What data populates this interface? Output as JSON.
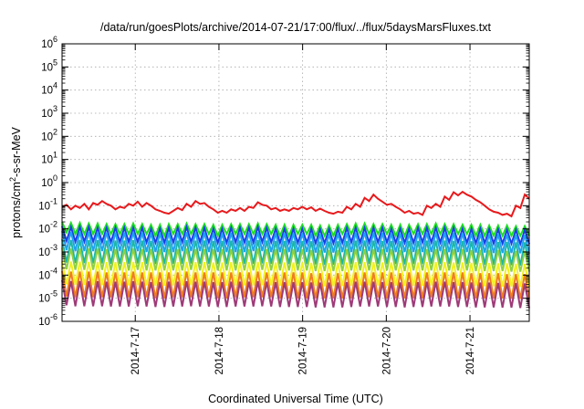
{
  "chart_data": {
    "type": "line",
    "title": "/data/run/goesPlots/archive/2014-07-21/17:00/flux/../flux/5daysMarsFluxes.txt",
    "xlabel": "Coordinated Universal Time (UTC)",
    "ylabel": {
      "pre": "protons/cm",
      "sup": "2",
      "post": "-s-sr-MeV"
    },
    "yscale": "log",
    "ylim": [
      1e-06,
      1000000.0
    ],
    "y_ticks": [
      {
        "base": "10",
        "exp": "-6"
      },
      {
        "base": "10",
        "exp": "-5"
      },
      {
        "base": "10",
        "exp": "-4"
      },
      {
        "base": "10",
        "exp": "-3"
      },
      {
        "base": "10",
        "exp": "-2"
      },
      {
        "base": "10",
        "exp": "-1"
      },
      {
        "base": "10",
        "exp": "0"
      },
      {
        "base": "10",
        "exp": "1"
      },
      {
        "base": "10",
        "exp": "2"
      },
      {
        "base": "10",
        "exp": "3"
      },
      {
        "base": "10",
        "exp": "4"
      },
      {
        "base": "10",
        "exp": "5"
      },
      {
        "base": "10",
        "exp": "6"
      }
    ],
    "xlim": [
      "2014-07-16 03:00",
      "2014-07-21 17:00"
    ],
    "x_ticks": [
      "2014-7-17",
      "2014-7-18",
      "2014-7-19",
      "2014-7-20",
      "2014-7-21"
    ],
    "grid": true,
    "series": [
      {
        "color": "#e8191c",
        "values": [
          0.09,
          0.11,
          0.07,
          0.1,
          0.08,
          0.12,
          0.07,
          0.13,
          0.11,
          0.16,
          0.12,
          0.1,
          0.07,
          0.09,
          0.08,
          0.12,
          0.1,
          0.15,
          0.09,
          0.13,
          0.1,
          0.07,
          0.06,
          0.05,
          0.045,
          0.06,
          0.08,
          0.065,
          0.12,
          0.09,
          0.16,
          0.12,
          0.13,
          0.09,
          0.07,
          0.05,
          0.06,
          0.05,
          0.07,
          0.06,
          0.08,
          0.06,
          0.09,
          0.08,
          0.14,
          0.11,
          0.1,
          0.07,
          0.08,
          0.06,
          0.07,
          0.06,
          0.08,
          0.07,
          0.09,
          0.07,
          0.085,
          0.06,
          0.075,
          0.06,
          0.05,
          0.045,
          0.055,
          0.05,
          0.09,
          0.07,
          0.12,
          0.09,
          0.22,
          0.16,
          0.3,
          0.2,
          0.15,
          0.11,
          0.12,
          0.09,
          0.07,
          0.05,
          0.06,
          0.045,
          0.05,
          0.04,
          0.1,
          0.08,
          0.12,
          0.09,
          0.25,
          0.18,
          0.38,
          0.28,
          0.4,
          0.3,
          0.25,
          0.18,
          0.14,
          0.1,
          0.07,
          0.055,
          0.05,
          0.04,
          0.045,
          0.035,
          0.1,
          0.08,
          0.3,
          0.2
        ]
      },
      {
        "color": "#1ce020",
        "values": [
          0.02,
          0.007,
          0.018,
          0.006,
          0.018,
          0.006,
          0.017,
          0.006,
          0.017,
          0.006,
          0.016,
          0.006,
          0.016,
          0.006,
          0.016,
          0.006,
          0.017,
          0.006,
          0.016,
          0.006,
          0.015,
          0.005,
          0.015,
          0.005,
          0.016,
          0.006,
          0.016,
          0.006,
          0.017,
          0.006,
          0.016,
          0.006,
          0.016,
          0.006,
          0.015,
          0.005,
          0.015,
          0.006,
          0.016,
          0.006,
          0.016,
          0.006,
          0.016,
          0.006,
          0.017,
          0.006,
          0.016,
          0.006,
          0.015,
          0.005,
          0.015,
          0.005,
          0.015,
          0.006,
          0.015,
          0.006,
          0.015,
          0.005,
          0.014,
          0.005,
          0.014,
          0.005,
          0.015,
          0.006,
          0.016,
          0.006,
          0.017,
          0.006,
          0.017,
          0.006,
          0.016,
          0.006,
          0.016,
          0.006,
          0.015,
          0.005,
          0.015,
          0.005,
          0.015,
          0.006,
          0.016,
          0.006,
          0.016,
          0.006,
          0.017,
          0.006,
          0.016,
          0.006,
          0.016,
          0.006,
          0.015,
          0.006,
          0.015,
          0.005,
          0.015,
          0.005,
          0.014,
          0.005,
          0.014,
          0.005,
          0.014,
          0.005,
          0.013,
          0.005,
          0.013,
          0.005
        ]
      },
      {
        "color": "#1a3ee8",
        "values": [
          0.013,
          0.003,
          0.012,
          0.0028,
          0.012,
          0.0028,
          0.012,
          0.0028,
          0.011,
          0.0027,
          0.011,
          0.0027,
          0.011,
          0.0027,
          0.011,
          0.0027,
          0.011,
          0.0027,
          0.011,
          0.0026,
          0.01,
          0.0025,
          0.01,
          0.0025,
          0.011,
          0.0026,
          0.011,
          0.0027,
          0.012,
          0.0027,
          0.011,
          0.0027,
          0.011,
          0.0026,
          0.01,
          0.0025,
          0.01,
          0.0025,
          0.011,
          0.0026,
          0.011,
          0.0026,
          0.011,
          0.0026,
          0.012,
          0.0027,
          0.011,
          0.0026,
          0.01,
          0.0025,
          0.01,
          0.0025,
          0.01,
          0.0025,
          0.01,
          0.0025,
          0.01,
          0.0024,
          0.0095,
          0.0024,
          0.0095,
          0.0024,
          0.01,
          0.0025,
          0.011,
          0.0026,
          0.011,
          0.0026,
          0.011,
          0.0026,
          0.011,
          0.0026,
          0.011,
          0.0026,
          0.01,
          0.0025,
          0.01,
          0.0025,
          0.01,
          0.0025,
          0.011,
          0.0026,
          0.011,
          0.0026,
          0.011,
          0.0026,
          0.011,
          0.0026,
          0.011,
          0.0026,
          0.01,
          0.0025,
          0.01,
          0.0024,
          0.01,
          0.0024,
          0.0095,
          0.0023,
          0.0095,
          0.0023,
          0.009,
          0.0023,
          0.009,
          0.0022,
          0.009,
          0.0022
        ]
      },
      {
        "color": "#1ea2f0",
        "values": [
          0.008,
          0.0012,
          0.0075,
          0.0011,
          0.0075,
          0.0011,
          0.0074,
          0.0011,
          0.0072,
          0.0011,
          0.007,
          0.0011,
          0.007,
          0.0011,
          0.007,
          0.0011,
          0.0072,
          0.0011,
          0.007,
          0.001,
          0.0066,
          0.001,
          0.0065,
          0.001,
          0.0068,
          0.001,
          0.007,
          0.0011,
          0.0072,
          0.0011,
          0.007,
          0.0011,
          0.007,
          0.001,
          0.0066,
          0.001,
          0.0065,
          0.001,
          0.0068,
          0.001,
          0.007,
          0.001,
          0.007,
          0.0011,
          0.0072,
          0.0011,
          0.007,
          0.001,
          0.0066,
          0.001,
          0.0065,
          0.001,
          0.0065,
          0.001,
          0.0065,
          0.001,
          0.0064,
          0.00095,
          0.006,
          0.00095,
          0.006,
          0.00095,
          0.0064,
          0.001,
          0.0068,
          0.001,
          0.007,
          0.0011,
          0.007,
          0.0011,
          0.007,
          0.001,
          0.0068,
          0.001,
          0.0065,
          0.001,
          0.0064,
          0.001,
          0.0065,
          0.001,
          0.0068,
          0.001,
          0.007,
          0.001,
          0.007,
          0.0011,
          0.007,
          0.001,
          0.0068,
          0.001,
          0.0065,
          0.001,
          0.0064,
          0.00095,
          0.0062,
          0.00095,
          0.006,
          0.0009,
          0.006,
          0.0009,
          0.0058,
          0.0009,
          0.0056,
          0.00088,
          0.0055,
          0.00085
        ]
      },
      {
        "color": "#1ab6aa",
        "values": [
          0.0035,
          0.00035,
          0.0033,
          0.00033,
          0.0033,
          0.00033,
          0.0032,
          0.00032,
          0.0032,
          0.00032,
          0.0031,
          0.00031,
          0.0031,
          0.00031,
          0.0031,
          0.00031,
          0.0032,
          0.00032,
          0.0031,
          0.00031,
          0.003,
          0.0003,
          0.003,
          0.0003,
          0.0031,
          0.00031,
          0.0031,
          0.00031,
          0.0032,
          0.00032,
          0.0031,
          0.00031,
          0.0031,
          0.00031,
          0.003,
          0.0003,
          0.003,
          0.0003,
          0.0031,
          0.00031,
          0.0031,
          0.00031,
          0.0031,
          0.00031,
          0.0032,
          0.00032,
          0.0031,
          0.00031,
          0.003,
          0.0003,
          0.003,
          0.0003,
          0.003,
          0.0003,
          0.003,
          0.0003,
          0.0029,
          0.00029,
          0.0028,
          0.00028,
          0.0028,
          0.00028,
          0.0029,
          0.00029,
          0.003,
          0.0003,
          0.0031,
          0.00031,
          0.0031,
          0.00031,
          0.0031,
          0.00031,
          0.003,
          0.0003,
          0.003,
          0.0003,
          0.0029,
          0.00029,
          0.003,
          0.0003,
          0.003,
          0.0003,
          0.0031,
          0.00031,
          0.0031,
          0.00031,
          0.0031,
          0.00031,
          0.003,
          0.0003,
          0.003,
          0.0003,
          0.0029,
          0.00029,
          0.0028,
          0.00028,
          0.0028,
          0.00028,
          0.0027,
          0.00027,
          0.0027,
          0.00027,
          0.0026,
          0.00026,
          0.0026,
          0.00026
        ]
      },
      {
        "color": "#8fd042",
        "values": [
          0.0015,
          0.00018,
          0.0014,
          0.00017,
          0.0014,
          0.00017,
          0.0014,
          0.00017,
          0.0014,
          0.00017,
          0.0013,
          0.00016,
          0.0013,
          0.00016,
          0.0013,
          0.00016,
          0.0014,
          0.00017,
          0.0013,
          0.00016,
          0.0013,
          0.00016,
          0.0013,
          0.00016,
          0.0013,
          0.00016,
          0.0013,
          0.00016,
          0.0014,
          0.00017,
          0.0013,
          0.00016,
          0.0013,
          0.00016,
          0.0013,
          0.00016,
          0.0013,
          0.00016,
          0.0013,
          0.00016,
          0.0013,
          0.00016,
          0.0013,
          0.00016,
          0.0014,
          0.00017,
          0.0013,
          0.00016,
          0.0013,
          0.00016,
          0.0013,
          0.00016,
          0.0013,
          0.00016,
          0.0013,
          0.00016,
          0.0012,
          0.00015,
          0.0012,
          0.00015,
          0.0012,
          0.00015,
          0.0012,
          0.00015,
          0.0013,
          0.00016,
          0.0013,
          0.00016,
          0.0013,
          0.00016,
          0.0013,
          0.00016,
          0.0013,
          0.00016,
          0.0013,
          0.00016,
          0.0012,
          0.00015,
          0.0013,
          0.00016,
          0.0013,
          0.00016,
          0.0013,
          0.00016,
          0.0013,
          0.00016,
          0.0013,
          0.00016,
          0.0013,
          0.00016,
          0.0013,
          0.00016,
          0.0012,
          0.00015,
          0.0012,
          0.00015,
          0.0012,
          0.00015,
          0.0012,
          0.00015,
          0.0011,
          0.00014,
          0.0011,
          0.00014,
          0.0011,
          0.00014
        ]
      },
      {
        "color": "#f2f21e",
        "values": [
          0.0004,
          4e-05,
          0.00038,
          3.8e-05,
          0.00038,
          3.8e-05,
          0.00037,
          3.7e-05,
          0.00037,
          3.7e-05,
          0.00036,
          3.6e-05,
          0.00036,
          3.6e-05,
          0.00036,
          3.6e-05,
          0.00037,
          3.7e-05,
          0.00036,
          3.6e-05,
          0.00035,
          3.5e-05,
          0.00035,
          3.5e-05,
          0.00036,
          3.6e-05,
          0.00036,
          3.6e-05,
          0.00037,
          3.7e-05,
          0.00036,
          3.6e-05,
          0.00036,
          3.6e-05,
          0.00035,
          3.5e-05,
          0.00035,
          3.5e-05,
          0.00036,
          3.6e-05,
          0.00036,
          3.6e-05,
          0.00036,
          3.6e-05,
          0.00037,
          3.7e-05,
          0.00036,
          3.6e-05,
          0.00035,
          3.5e-05,
          0.00035,
          3.5e-05,
          0.00035,
          3.5e-05,
          0.00035,
          3.5e-05,
          0.00034,
          3.4e-05,
          0.00033,
          3.3e-05,
          0.00033,
          3.3e-05,
          0.00034,
          3.4e-05,
          0.00035,
          3.5e-05,
          0.00036,
          3.6e-05,
          0.00036,
          3.6e-05,
          0.00036,
          3.6e-05,
          0.00035,
          3.5e-05,
          0.00035,
          3.5e-05,
          0.00034,
          3.4e-05,
          0.00035,
          3.5e-05,
          0.00035,
          3.5e-05,
          0.00036,
          3.6e-05,
          0.00036,
          3.6e-05,
          0.00036,
          3.6e-05,
          0.00035,
          3.5e-05,
          0.00035,
          3.5e-05,
          0.00034,
          3.4e-05,
          0.00033,
          3.3e-05,
          0.00033,
          3.3e-05,
          0.00032,
          3.2e-05,
          0.00032,
          3.2e-05,
          0.00031,
          3.1e-05,
          0.0003,
          3e-05
        ]
      },
      {
        "color": "#f07d1e",
        "values": [
          0.00015,
          1.2e-05,
          0.00014,
          1.1e-05,
          0.00014,
          1.1e-05,
          0.00014,
          1.1e-05,
          0.00014,
          1.1e-05,
          0.00013,
          1.1e-05,
          0.00013,
          1.1e-05,
          0.00013,
          1.1e-05,
          0.00014,
          1.1e-05,
          0.00013,
          1.1e-05,
          0.00013,
          1e-05,
          0.00013,
          1e-05,
          0.00013,
          1.1e-05,
          0.00013,
          1.1e-05,
          0.00014,
          1.1e-05,
          0.00013,
          1.1e-05,
          0.00013,
          1.1e-05,
          0.00013,
          1e-05,
          0.00013,
          1e-05,
          0.00013,
          1.1e-05,
          0.00013,
          1.1e-05,
          0.00013,
          1.1e-05,
          0.00014,
          1.1e-05,
          0.00013,
          1.1e-05,
          0.00013,
          1e-05,
          0.00013,
          1e-05,
          0.00013,
          1e-05,
          0.00013,
          1e-05,
          0.00012,
          1e-05,
          0.00012,
          1e-05,
          0.00012,
          1e-05,
          0.00012,
          1e-05,
          0.00013,
          1e-05,
          0.00013,
          1.1e-05,
          0.00013,
          1.1e-05,
          0.00013,
          1.1e-05,
          0.00013,
          1e-05,
          0.00013,
          1e-05,
          0.00012,
          1e-05,
          0.00013,
          1e-05,
          0.00013,
          1e-05,
          0.00013,
          1.1e-05,
          0.00013,
          1.1e-05,
          0.00013,
          1.1e-05,
          0.00013,
          1e-05,
          0.00013,
          1e-05,
          0.00012,
          1e-05,
          0.00012,
          1e-05,
          0.00012,
          1e-05,
          0.00012,
          1e-05,
          0.00011,
          9.5e-06,
          0.00011,
          9.5e-06,
          0.00011,
          9.3e-06
        ]
      },
      {
        "color": "#9e3a78",
        "values": [
          6e-05,
          5e-06,
          5.5e-05,
          4.5e-06,
          5.5e-05,
          4.5e-06,
          5.4e-05,
          4.5e-06,
          5.4e-05,
          4.5e-06,
          5.2e-05,
          4.4e-06,
          5.2e-05,
          4.4e-06,
          5.2e-05,
          4.4e-06,
          5.4e-05,
          4.5e-06,
          5.2e-05,
          4.4e-06,
          5e-05,
          4.2e-06,
          5e-05,
          4.2e-06,
          5.2e-05,
          4.4e-06,
          5.2e-05,
          4.4e-06,
          5.4e-05,
          4.5e-06,
          5.2e-05,
          4.4e-06,
          5.2e-05,
          4.4e-06,
          5e-05,
          4.2e-06,
          5e-05,
          4.2e-06,
          5.2e-05,
          4.4e-06,
          5.2e-05,
          4.4e-06,
          5.2e-05,
          4.4e-06,
          5.4e-05,
          4.5e-06,
          5.2e-05,
          4.4e-06,
          5e-05,
          4.2e-06,
          5e-05,
          4.2e-06,
          5e-05,
          4.2e-06,
          5e-05,
          4.2e-06,
          4.8e-05,
          4e-06,
          4.7e-05,
          4e-06,
          4.7e-05,
          4e-06,
          4.8e-05,
          4e-06,
          5e-05,
          4.2e-06,
          5.2e-05,
          4.4e-06,
          5.2e-05,
          4.4e-06,
          5.2e-05,
          4.4e-06,
          5e-05,
          4.2e-06,
          5e-05,
          4.2e-06,
          4.8e-05,
          4e-06,
          5e-05,
          4.2e-06,
          5e-05,
          4.2e-06,
          5.2e-05,
          4.4e-06,
          5.2e-05,
          4.4e-06,
          5.2e-05,
          4.4e-06,
          5e-05,
          4.2e-06,
          5e-05,
          4.2e-06,
          4.8e-05,
          4e-06,
          4.7e-05,
          4e-06,
          4.7e-05,
          4e-06,
          4.6e-05,
          3.9e-06,
          4.6e-05,
          3.9e-06,
          4.5e-05,
          3.8e-06,
          4.4e-05,
          3.7e-06
        ]
      }
    ]
  }
}
